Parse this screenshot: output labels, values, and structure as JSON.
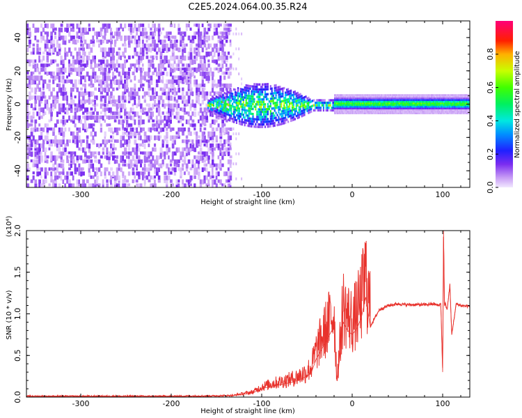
{
  "chart_data": [
    {
      "type": "heatmap",
      "title": "C2E5.2024.064.00.35.R24",
      "xlabel": "Height of straight line (km)",
      "ylabel": "Frequency (Hz)",
      "xlim": [
        -360,
        130
      ],
      "ylim": [
        -50,
        50
      ],
      "x_ticks": [
        -300,
        -200,
        -100,
        0,
        100
      ],
      "y_ticks": [
        -40,
        -20,
        0,
        20,
        40
      ],
      "colorbar": {
        "label": "Normalized spectral amplitude",
        "ticks": [
          0.0,
          0.2,
          0.4,
          0.6,
          0.8
        ],
        "tick_labels": [
          "0.0",
          "0.2",
          "0.4",
          "0.6",
          "0.8"
        ],
        "range": [
          0.0,
          1.0
        ],
        "colormap": "rainbow (violet -> blue -> cyan -> green -> yellow -> red -> magenta)"
      },
      "features": [
        {
          "x_range": [
            -360,
            -135
          ],
          "freq_range": [
            -50,
            50
          ],
          "amplitude": 0.08,
          "pattern": "broadband speckle noise"
        },
        {
          "x_range": [
            -135,
            -120
          ],
          "freq_range": [
            -50,
            50
          ],
          "amplitude": 0.03,
          "pattern": "sparse faint noise"
        },
        {
          "x_range": [
            -160,
            -20
          ],
          "freq_range": [
            -12,
            14
          ],
          "amplitude": 0.35,
          "pattern": "widening clutter band centred near 0 Hz"
        },
        {
          "x_range": [
            -20,
            130
          ],
          "freq_range": [
            -3,
            4
          ],
          "amplitude": 0.55,
          "pattern": "narrow steady echo line near 0 Hz"
        }
      ]
    },
    {
      "type": "line",
      "title": "",
      "xlabel": "Height of straight line (km)",
      "ylabel": "SNR (10 * v/v)",
      "y_multiplier_label": "(x10⁴)",
      "xlim": [
        -360,
        130
      ],
      "ylim": [
        0,
        2.0
      ],
      "x_ticks": [
        -300,
        -200,
        -100,
        0,
        100
      ],
      "y_ticks": [
        0.0,
        0.5,
        1.0,
        1.5,
        2.0
      ],
      "y_tick_labels": [
        "0.0",
        "0.5",
        "1.0",
        "1.5",
        "2.0"
      ],
      "color": "#e8322c",
      "series": [
        {
          "x": [
            -360,
            -300,
            -250,
            -200,
            -150,
            -130,
            -110,
            -100,
            -90,
            -80,
            -70,
            -60,
            -50,
            -45,
            -40,
            -35,
            -30,
            -25,
            -20,
            -17,
            -15,
            -10,
            -5,
            0,
            5,
            10,
            15,
            20,
            25,
            30,
            40,
            50,
            60,
            70,
            80,
            90,
            95,
            98,
            100,
            101,
            102,
            103,
            105,
            108,
            110,
            115,
            120,
            130
          ],
          "y": [
            0.01,
            0.01,
            0.01,
            0.01,
            0.015,
            0.02,
            0.05,
            0.1,
            0.13,
            0.15,
            0.17,
            0.2,
            0.25,
            0.3,
            0.45,
            0.55,
            0.65,
            0.75,
            0.85,
            0.2,
            0.35,
            0.9,
            0.8,
            0.75,
            0.82,
            0.95,
            1.2,
            0.85,
            0.95,
            1.05,
            1.1,
            1.12,
            1.11,
            1.11,
            1.11,
            1.12,
            1.1,
            1.12,
            0.3,
            2.0,
            1.1,
            1.12,
            1.05,
            1.35,
            0.75,
            1.12,
            1.1,
            1.09
          ]
        }
      ]
    }
  ]
}
